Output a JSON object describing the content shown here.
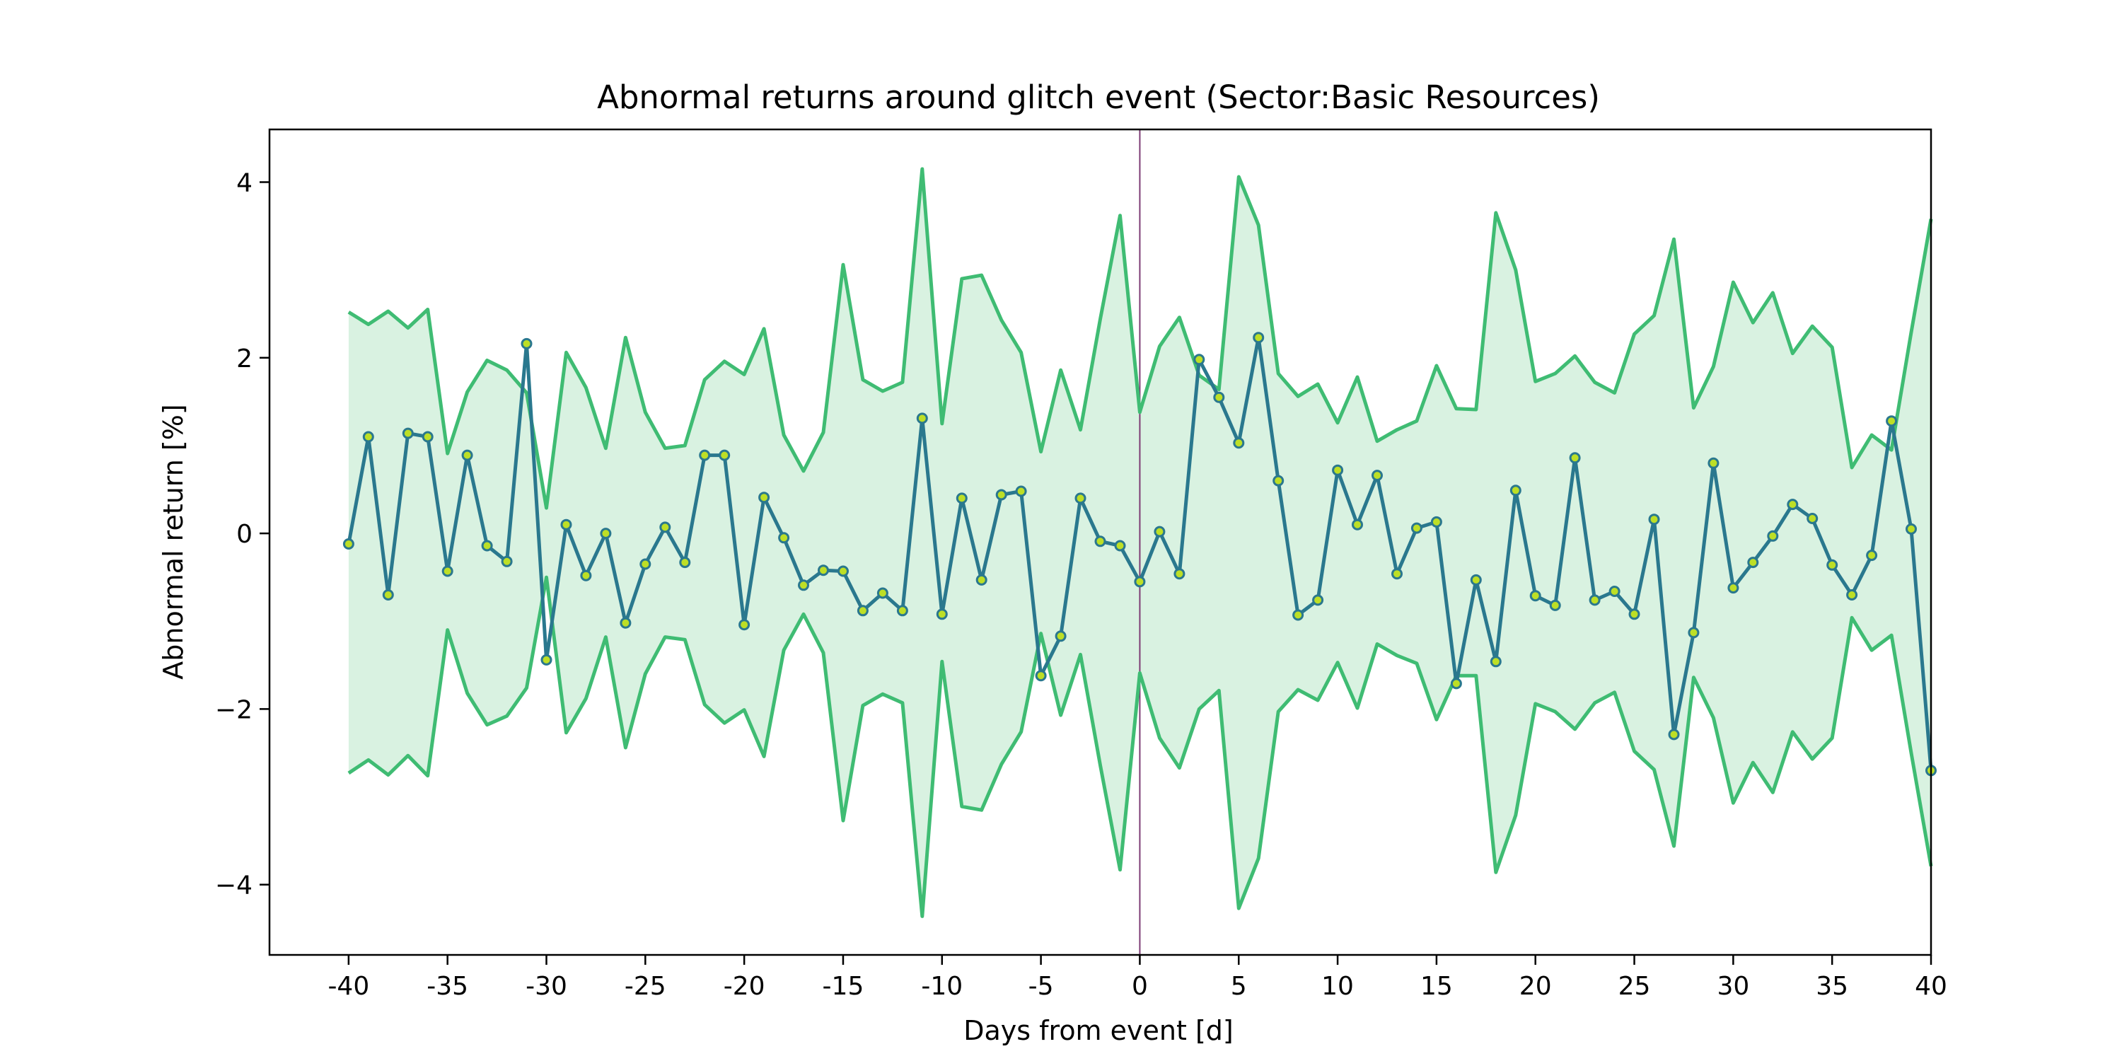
{
  "chart_data": {
    "type": "line",
    "title": "Abnormal returns around glitch event (Sector:Basic Resources)",
    "xlabel": "Days from event [d]",
    "ylabel": "Abnormal return [%]",
    "xlim": [
      -44,
      40
    ],
    "ylim": [
      -4.8,
      4.6
    ],
    "xticks": [
      -40,
      -35,
      -30,
      -25,
      -20,
      -15,
      -10,
      -5,
      0,
      5,
      10,
      15,
      20,
      25,
      30,
      35,
      40
    ],
    "xtick_labels": [
      "-40",
      "-35",
      "-30",
      "-25",
      "-20",
      "-15",
      "-10",
      "-5",
      "0",
      "5",
      "10",
      "15",
      "20",
      "25",
      "30",
      "35",
      "40"
    ],
    "yticks": [
      -4,
      -2,
      0,
      2,
      4
    ],
    "ytick_labels": [
      "−4",
      "−2",
      "0",
      "2",
      "4"
    ],
    "event_day": 0,
    "grid": false,
    "colors": {
      "abnormal_return": "#2a788e",
      "marker_fill": "#bddf26",
      "band": "#3fbc73",
      "band_fill": "#d9f2e1",
      "event_line": "#7d3c74"
    },
    "x": [
      -40,
      -39,
      -38,
      -37,
      -36,
      -35,
      -34,
      -33,
      -32,
      -31,
      -30,
      -29,
      -28,
      -27,
      -26,
      -25,
      -24,
      -23,
      -22,
      -21,
      -20,
      -19,
      -18,
      -17,
      -16,
      -15,
      -14,
      -13,
      -12,
      -11,
      -10,
      -9,
      -8,
      -7,
      -6,
      -5,
      -4,
      -3,
      -2,
      -1,
      0,
      1,
      2,
      3,
      4,
      5,
      6,
      7,
      8,
      9,
      10,
      11,
      12,
      13,
      14,
      15,
      16,
      17,
      18,
      19,
      20,
      21,
      22,
      23,
      24,
      25,
      26,
      27,
      28,
      29,
      30,
      31,
      32,
      33,
      34,
      35,
      36,
      37,
      38,
      39,
      40
    ],
    "series": [
      {
        "values": [
          -0.12,
          1.1,
          -0.7,
          1.14,
          1.1,
          -0.43,
          0.89,
          -0.14,
          -0.32,
          2.16,
          -1.44,
          0.1,
          -0.48,
          0.0,
          -1.02,
          -0.35,
          0.07,
          -0.33,
          0.89,
          0.89,
          -1.04,
          0.41,
          -0.05,
          -0.59,
          -0.42,
          -0.43,
          -0.88,
          -0.68,
          -0.88,
          1.31,
          -0.92,
          0.4,
          -0.53,
          0.44,
          0.48,
          -1.62,
          -1.17,
          0.4,
          -0.09,
          -0.14,
          -0.55,
          0.02,
          -0.46,
          1.98,
          1.55,
          1.03,
          2.23,
          0.6,
          -0.93,
          -0.76,
          0.72,
          0.1,
          0.66,
          -0.46,
          0.06,
          0.13,
          -1.71,
          -0.53,
          -1.46,
          0.49,
          -0.71,
          -0.82,
          0.86,
          -0.76,
          -0.66,
          -0.92,
          0.16,
          -2.29,
          -1.13,
          0.8,
          -0.62,
          -0.33,
          -0.03,
          0.33,
          0.17,
          -0.36,
          -0.7,
          -0.25,
          1.28,
          0.05,
          -2.7
        ]
      },
      {
        "values": [
          2.52,
          2.38,
          2.53,
          2.34,
          2.55,
          0.91,
          1.61,
          1.97,
          1.86,
          1.6,
          0.29,
          2.06,
          1.66,
          0.97,
          2.23,
          1.38,
          0.97,
          1.0,
          1.75,
          1.96,
          1.81,
          2.33,
          1.12,
          0.71,
          1.15,
          3.06,
          1.75,
          1.62,
          1.72,
          4.15,
          1.25,
          2.9,
          2.94,
          2.43,
          2.06,
          0.93,
          1.86,
          1.18,
          2.44,
          3.62,
          1.38,
          2.13,
          2.46,
          1.8,
          1.64,
          4.06,
          3.51,
          1.82,
          1.56,
          1.7,
          1.26,
          1.78,
          1.05,
          1.18,
          1.28,
          1.91,
          1.42,
          1.41,
          3.65,
          3.0,
          1.73,
          1.82,
          2.02,
          1.72,
          1.6,
          2.27,
          2.48,
          3.35,
          1.43,
          1.9,
          2.86,
          2.4,
          2.74,
          2.05,
          2.36,
          2.12,
          0.75,
          1.12,
          0.95,
          2.29,
          3.58
        ]
      },
      {
        "values": [
          -2.73,
          -2.58,
          -2.75,
          -2.53,
          -2.76,
          -1.1,
          -1.82,
          -2.18,
          -2.08,
          -1.76,
          -0.5,
          -2.27,
          -1.88,
          -1.18,
          -2.44,
          -1.6,
          -1.18,
          -1.21,
          -1.95,
          -2.16,
          -2.01,
          -2.54,
          -1.33,
          -0.92,
          -1.36,
          -3.27,
          -1.96,
          -1.83,
          -1.93,
          -4.36,
          -1.46,
          -3.11,
          -3.15,
          -2.63,
          -2.26,
          -1.14,
          -2.07,
          -1.38,
          -2.64,
          -3.83,
          -1.59,
          -2.33,
          -2.67,
          -2.0,
          -1.79,
          -4.27,
          -3.7,
          -2.03,
          -1.78,
          -1.9,
          -1.47,
          -1.99,
          -1.26,
          -1.39,
          -1.48,
          -2.12,
          -1.62,
          -1.62,
          -3.86,
          -3.21,
          -1.94,
          -2.03,
          -2.23,
          -1.93,
          -1.81,
          -2.48,
          -2.69,
          -3.56,
          -1.64,
          -2.1,
          -3.07,
          -2.61,
          -2.95,
          -2.26,
          -2.57,
          -2.33,
          -0.96,
          -1.33,
          -1.16,
          -2.5,
          -3.79
        ]
      }
    ]
  }
}
